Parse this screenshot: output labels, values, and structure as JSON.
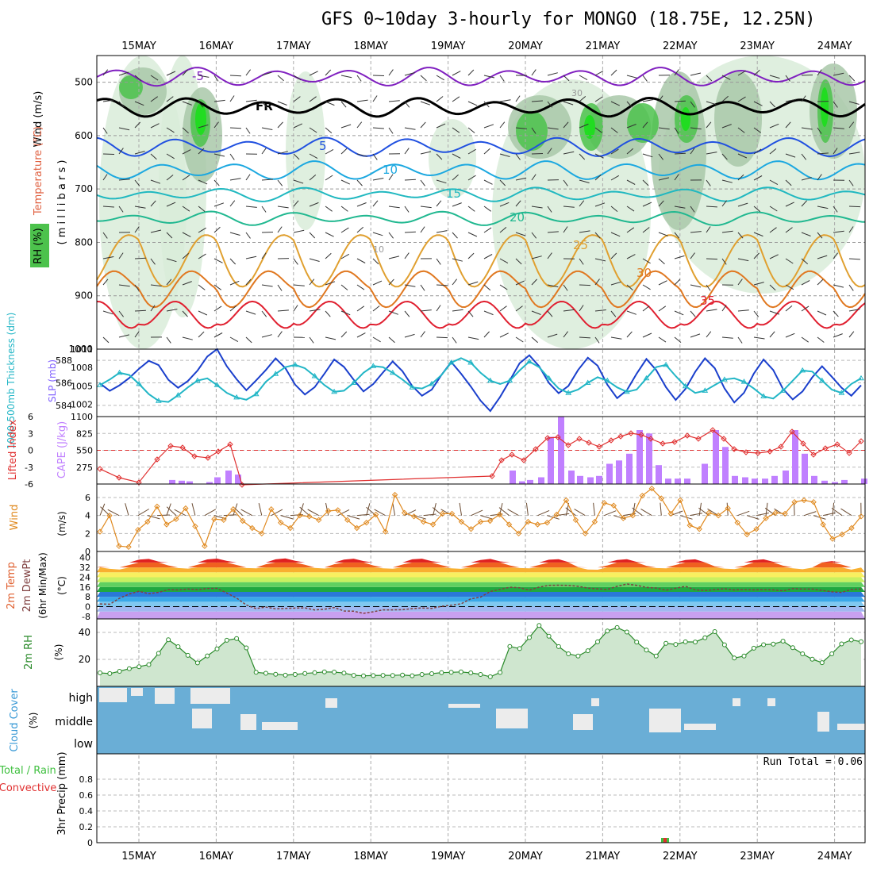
{
  "title": "GFS 0~10day 3-hourly for MONGO (18.75E, 12.25N)",
  "colors": {
    "rh_light": "#d9ecd9",
    "rh_mid": "#a9c8a9",
    "rh_dark": "#7fa07f",
    "rh_green": "#4cc24c",
    "rh_bright": "#18e018",
    "slp": "#1a3fcc",
    "thickness": "#22b6c6",
    "cape": "#c080ff",
    "lifted": "#e03030",
    "wind": "#e08a20",
    "rh2m": "#2a8a2a",
    "cloud": "#6aaed6",
    "precip_total": "#40c040",
    "precip_conv": "#e03030"
  },
  "chart_data": [
    {
      "type": "area",
      "name": "vertical profile",
      "ylabel_wind": "Wind (m/s)",
      "ylabel_temp": "Temperature (°C)",
      "ylabel_rh": "RH (%)",
      "ylabel_units": "( m i l l i b a r s )",
      "x_dates": [
        "15MAY",
        "16MAY",
        "17MAY",
        "18MAY",
        "19MAY",
        "20MAY",
        "21MAY",
        "22MAY",
        "23MAY",
        "24MAY"
      ],
      "y_ticks": [
        500,
        600,
        700,
        800,
        900,
        1000
      ],
      "ylim": [
        450,
        1000
      ],
      "temperature_isotherms": [
        {
          "value": -5,
          "label": "-5",
          "color": "#8020c0"
        },
        {
          "value": 0,
          "label": "FR",
          "color": "#000000"
        },
        {
          "value": 5,
          "label": "5",
          "color": "#2050e0"
        },
        {
          "value": 10,
          "label": "10",
          "color": "#1ca8e0"
        },
        {
          "value": 15,
          "label": "15",
          "color": "#20b8c0"
        },
        {
          "value": 20,
          "label": "20",
          "color": "#20b890"
        },
        {
          "value": 25,
          "label": "25",
          "color": "#e0a030"
        },
        {
          "value": 30,
          "label": "30",
          "color": "#e07820"
        },
        {
          "value": 35,
          "label": "35",
          "color": "#e02030"
        }
      ],
      "rh_contour_labels": [
        "10",
        "30"
      ]
    },
    {
      "type": "line",
      "name": "thickness and slp",
      "ylabel_left": "1000-500mb Thickness (dm)",
      "ylabel_right": "SLP (mb)",
      "left_ticks": [
        584,
        586,
        588
      ],
      "right_ticks": [
        1002,
        1005,
        1008,
        1011
      ],
      "series": [
        {
          "name": "SLP (mb)",
          "values": [
            1005.4,
            1004.2,
            1005.1,
            1006.3,
            1007.8,
            1009.1,
            1008.4,
            1006.0,
            1004.7,
            1005.8,
            1007.5,
            1009.8,
            1011.0,
            1008.2,
            1006.1,
            1004.3,
            1005.9,
            1007.6,
            1009.5,
            1007.9,
            1005.2,
            1003.6,
            1004.8,
            1007.0,
            1009.3,
            1008.1,
            1006.0,
            1004.1,
            1005.3,
            1007.2,
            1009.0,
            1007.4,
            1005.0,
            1003.4,
            1004.4,
            1006.8,
            1008.9,
            1007.0,
            1004.9,
            1002.6,
            1000.9,
            1003.2,
            1005.9,
            1008.7,
            1010.0,
            1008.2,
            1005.5,
            1003.8,
            1005.0,
            1007.6,
            1009.6,
            1008.3,
            1005.2,
            1003.0,
            1004.3,
            1007.0,
            1009.4,
            1007.6,
            1004.8,
            1002.7,
            1004.5,
            1007.3,
            1009.5,
            1007.9,
            1004.6,
            1002.3,
            1003.9,
            1007.0,
            1009.3,
            1007.6,
            1004.5,
            1002.8,
            1004.1,
            1006.4,
            1008.2,
            1006.5,
            1004.7,
            1003.4,
            1005.1
          ]
        },
        {
          "name": "1000-500mb Thickness (dm)",
          "values": [
            585.8,
            586.3,
            586.9,
            586.7,
            585.9,
            585.0,
            584.4,
            584.3,
            584.9,
            585.6,
            586.2,
            586.4,
            585.8,
            585.1,
            584.7,
            584.5,
            585.0,
            586.1,
            586.8,
            587.4,
            587.6,
            587.3,
            586.6,
            585.8,
            585.2,
            585.3,
            586.0,
            586.9,
            587.5,
            587.4,
            586.9,
            586.3,
            585.6,
            585.5,
            585.9,
            586.7,
            587.8,
            588.2,
            587.8,
            586.9,
            586.2,
            585.9,
            586.2,
            587.1,
            587.9,
            587.4,
            586.4,
            585.5,
            585.1,
            585.4,
            586.0,
            586.5,
            586.2,
            585.6,
            585.2,
            585.4,
            586.4,
            587.4,
            587.6,
            586.6,
            585.7,
            585.1,
            585.3,
            585.8,
            586.3,
            586.4,
            586.1,
            585.5,
            584.8,
            584.6,
            585.3,
            586.2,
            587.1,
            587.0,
            586.2,
            585.4,
            585.1,
            585.9,
            586.4
          ]
        }
      ],
      "n_points": 79
    },
    {
      "type": "bar",
      "name": "cape and lifted index",
      "ylabel_left": "Lifted Index",
      "ylabel_right": "CAPE (J/kg)",
      "left_ticks": [
        -6,
        -3,
        0,
        3,
        6
      ],
      "right_ticks": [
        275,
        550,
        825,
        1100
      ],
      "series": [
        {
          "name": "CAPE (J/kg)",
          "values": [
            0,
            0,
            0,
            0,
            0,
            0,
            0,
            0,
            0,
            30,
            0,
            0,
            0,
            0,
            20,
            0,
            0,
            0,
            0,
            0,
            0,
            0,
            0,
            0,
            0,
            0,
            0,
            0,
            0,
            0,
            0,
            0,
            0,
            0,
            0,
            0,
            0,
            0,
            0,
            0,
            0,
            0,
            0,
            0,
            0,
            0,
            0,
            0,
            0,
            0,
            0,
            0,
            0,
            0,
            0,
            0,
            0,
            0,
            0,
            0,
            0,
            0,
            0,
            0,
            0,
            0,
            0,
            0,
            0,
            0,
            0,
            0,
            0,
            0,
            0,
            0,
            0,
            0,
            0,
            0,
            0,
            0,
            0,
            0,
            0,
            0,
            0,
            0
          ]
        },
        {
          "name": "Lifted Index",
          "values": [
            4.5,
            5,
            5.6,
            5.9,
            5.9,
            5.8,
            1.8,
            -0.6,
            -1.1,
            -0.4,
            -0.6,
            -1.5,
            -1.7,
            -1.2,
            -0.8,
            -1.2,
            -0.6,
            0.8,
            3.6,
            6.2,
            6.2,
            6.2,
            6.2,
            6.2,
            6.2,
            6.2,
            6.2,
            6.2,
            6.2,
            6.2,
            6.2,
            6.2,
            6.2,
            6.2,
            6.2,
            6.2,
            6.2,
            6.2,
            6.2,
            6.2,
            6.2,
            6.2,
            6.2,
            6.2,
            6.2,
            6.2,
            6.2,
            6.2,
            6.2,
            6.2,
            6.2,
            6.2,
            6.2,
            6.2,
            6.2,
            6.2,
            6.2,
            6.2,
            6.2,
            6.2,
            6.2,
            6.2,
            6.2,
            6.2,
            6.2,
            6.2,
            6.2,
            6.2,
            6.2,
            6.2,
            6.2,
            6.2,
            6.2,
            6.2,
            6.2,
            6.2,
            6.2,
            6.2,
            6.2
          ]
        }
      ]
    },
    {
      "type": "line",
      "name": "10m wind",
      "ylabel": "10m Wind Speed & Barbs",
      "yunits": "(m/s)",
      "y_ticks": [
        0,
        2,
        4,
        6
      ],
      "series": [
        {
          "name": "Speed",
          "values": [
            2.2,
            4.0,
            0.6,
            0.5,
            2.4,
            3.3,
            5.0,
            3.0,
            3.6,
            4.8,
            2.8,
            0.6,
            3.6,
            3.5,
            4.7,
            3.4,
            2.6,
            2.0,
            4.7,
            3.2,
            2.6,
            4.0,
            3.9,
            3.5,
            4.5,
            4.6,
            3.5,
            2.6,
            3.2,
            4.1,
            2.2,
            6.3,
            4.3,
            3.9,
            3.3,
            3.0,
            4.2,
            4.2,
            3.3,
            2.5,
            3.3,
            3.4,
            4.1,
            3.0,
            2.0,
            3.3,
            3.0,
            3.2,
            4.1,
            5.7,
            3.5,
            2.0,
            3.3,
            5.4,
            5.1,
            3.7,
            4.0,
            6.2,
            7.0,
            5.9,
            4.2,
            5.7,
            2.9,
            2.5,
            4.3,
            4.0,
            4.8,
            3.2,
            1.9,
            2.5,
            3.7,
            4.3,
            4.2,
            5.5,
            5.7,
            5.5,
            3.0,
            1.4,
            1.9,
            2.6,
            3.9
          ]
        }
      ]
    },
    {
      "type": "area",
      "name": "2m temperature",
      "ylabel": "2m Temp 2m DewPt (6hr Min/Max)",
      "yunits": "(°C)",
      "y_ticks": [
        -8,
        0,
        8,
        16,
        24,
        32,
        40
      ],
      "series": [
        {
          "name": "2m Temp",
          "values": [
            32.5,
            30.8,
            30.3,
            34.0,
            38.4,
            38.9,
            36.7,
            33.6,
            31.5,
            31.0,
            34.2,
            38.5,
            39.2,
            37.3,
            34.0,
            31.5,
            31.2,
            34.6,
            38.6,
            39.3,
            37.4,
            34.1,
            31.6,
            31.1,
            34.6,
            38.4,
            39.1,
            37.2,
            33.6,
            31.2,
            30.9,
            34.3,
            38.6,
            39.1,
            37.1,
            33.8,
            31.3,
            30.8,
            33.8,
            38.1,
            38.9,
            36.9,
            33.6,
            31.5,
            31.3,
            34.0,
            38.3,
            38.7,
            36.3,
            32.3,
            30.3,
            30.1,
            33.6,
            38.0,
            38.7,
            36.5,
            33.3,
            31.5,
            31.3,
            34.0,
            38.1,
            38.6,
            36.1,
            32.9,
            31.0,
            30.6,
            33.4,
            37.9,
            38.6,
            36.6,
            33.4,
            31.2,
            30.5,
            31.8,
            36.1,
            37.2,
            34.3,
            30.2,
            31.9
          ]
        },
        {
          "name": "2m DewPt",
          "values": [
            2.2,
            2.0,
            6.9,
            10.3,
            12.5,
            10.6,
            11.7,
            13.9,
            13.6,
            14.4,
            13.9,
            14.8,
            14.9,
            11.1,
            7.0,
            1.3,
            -1.6,
            -0.3,
            -1.8,
            -1.4,
            -1.2,
            -1.0,
            -2.7,
            -2.1,
            -0.7,
            -3.5,
            -3.7,
            -5.5,
            -4.2,
            -2.6,
            -2.6,
            -2.5,
            -1.6,
            -1.1,
            -1.4,
            0.3,
            1.2,
            2.3,
            6.4,
            7.8,
            12.3,
            14.1,
            15.8,
            15.4,
            13.5,
            15.9,
            17.4,
            17.5,
            17.3,
            16.6,
            15.1,
            14.5,
            14.0,
            16.6,
            18.5,
            17.4,
            15.7,
            15.2,
            13.4,
            15.0,
            16.5,
            13.7,
            13.2,
            13.9,
            14.6,
            13.6,
            13.9,
            13.7,
            13.8,
            13.7,
            12.9,
            14.7,
            14.3,
            14.3,
            13.3,
            12.1,
            11.6,
            14.0,
            14.4
          ]
        }
      ]
    },
    {
      "type": "area",
      "name": "2m RH",
      "ylabel": "2m RH",
      "yunits": "(%)",
      "y_ticks": [
        20,
        40
      ],
      "series": [
        {
          "name": "2m RH",
          "values": [
            10,
            9.5,
            11.2,
            13.1,
            14.6,
            16.1,
            24.5,
            34.6,
            29.4,
            23.0,
            17.4,
            22.6,
            27.8,
            34.2,
            35.4,
            28.5,
            10.4,
            9.7,
            9.0,
            8.3,
            8.8,
            9.6,
            10.1,
            10.7,
            10.6,
            9.9,
            8.2,
            7.8,
            8.0,
            8.2,
            8.1,
            8.4,
            7.9,
            8.8,
            9.4,
            10.2,
            10.4,
            10.7,
            10.0,
            8.8,
            7.1,
            10.3,
            29.6,
            28.0,
            36.2,
            45.2,
            37.2,
            29.5,
            24.1,
            22.5,
            26.4,
            33.0,
            41.0,
            43.6,
            40.3,
            32.8,
            26.9,
            22.5,
            31.9,
            31.1,
            33.0,
            32.9,
            36.0,
            40.6,
            30.8,
            21.0,
            22.5,
            28.3,
            30.9,
            31.3,
            33.5,
            28.7,
            24.1,
            20.1,
            17.6,
            24.1,
            31.5,
            34.4,
            33.1
          ]
        }
      ]
    },
    {
      "type": "area",
      "name": "cloud cover",
      "ylabel": "Cloud Cover",
      "yunits": "(%)",
      "levels": [
        "high",
        "middle",
        "low"
      ]
    },
    {
      "type": "bar",
      "name": "precipitation",
      "ylabel": "3hr Precip (mm)",
      "legend": [
        "Total / Rain",
        "Convective"
      ],
      "y_ticks": [
        0,
        0.2,
        0.4,
        0.6,
        0.8
      ],
      "run_total_label": "Run Total = 0.06",
      "series": [
        {
          "name": "Total / Rain",
          "values": [
            0.06
          ]
        },
        {
          "name": "Convective",
          "values": [
            0.06
          ]
        }
      ]
    }
  ]
}
